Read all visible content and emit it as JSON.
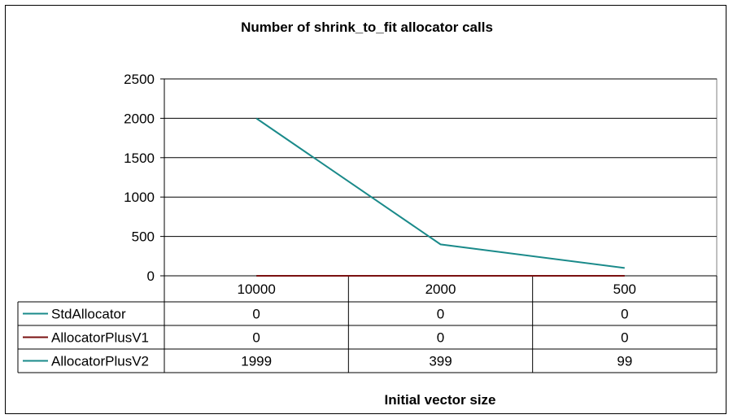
{
  "chart_data": {
    "type": "line",
    "title": "Number of shrink_to_fit allocator calls",
    "xlabel": "Initial vector size",
    "ylabel": "",
    "categories": [
      "10000",
      "2000",
      "500"
    ],
    "ylim": [
      0,
      2500
    ],
    "yticks": [
      "2500",
      "2000",
      "1500",
      "1000",
      "500",
      "0"
    ],
    "ytick_values": [
      2500,
      2000,
      1500,
      1000,
      500,
      0
    ],
    "grid": true,
    "legend": "data-table",
    "series": [
      {
        "name": "StdAllocator",
        "values": [
          0,
          0,
          0
        ],
        "color": "#1a8a8a"
      },
      {
        "name": "AllocatorPlusV1",
        "values": [
          0,
          0,
          0
        ],
        "color": "#7a1010"
      },
      {
        "name": "AllocatorPlusV2",
        "values": [
          1999,
          399,
          99
        ],
        "color": "#1a8a8a"
      }
    ]
  }
}
